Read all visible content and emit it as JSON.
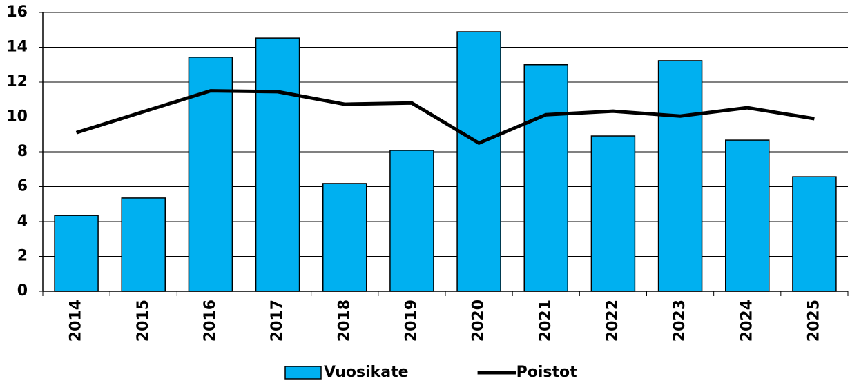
{
  "chart_data": {
    "type": "bar",
    "categories": [
      "2014",
      "2015",
      "2016",
      "2017",
      "2018",
      "2019",
      "2020",
      "2021",
      "2022",
      "2023",
      "2024",
      "2025"
    ],
    "series": [
      {
        "name": "Vuosikate",
        "type": "bar",
        "color": "#00b0f0",
        "values": [
          4.35,
          5.35,
          13.43,
          14.53,
          6.18,
          8.08,
          14.89,
          13.0,
          8.91,
          13.23,
          8.67,
          6.57
        ]
      },
      {
        "name": "Poistot",
        "type": "line",
        "color": "#000000",
        "values": [
          9.1,
          10.3,
          11.5,
          11.45,
          10.73,
          10.8,
          8.5,
          10.13,
          10.33,
          10.05,
          10.53,
          9.9
        ]
      }
    ],
    "ylim": [
      0,
      16
    ],
    "yticks": [
      0,
      2,
      4,
      6,
      8,
      10,
      12,
      14,
      16
    ],
    "grid": true,
    "legend": "bottom"
  }
}
